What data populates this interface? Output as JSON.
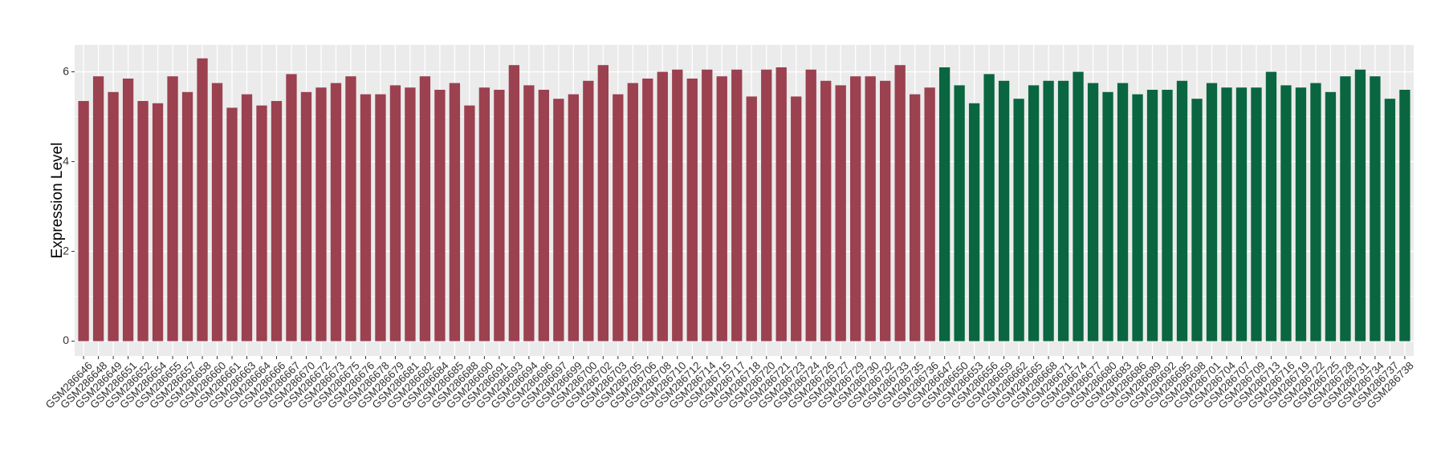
{
  "chart_data": {
    "type": "bar",
    "ylabel": "Expression Level",
    "categories": [
      "GSM286646",
      "GSM286648",
      "GSM286649",
      "GSM286651",
      "GSM286652",
      "GSM286654",
      "GSM286655",
      "GSM286657",
      "GSM286658",
      "GSM286660",
      "GSM286661",
      "GSM286663",
      "GSM286664",
      "GSM286666",
      "GSM286667",
      "GSM286670",
      "GSM286672",
      "GSM286673",
      "GSM286675",
      "GSM286676",
      "GSM286678",
      "GSM286679",
      "GSM286681",
      "GSM286682",
      "GSM286684",
      "GSM286685",
      "GSM286688",
      "GSM286690",
      "GSM286691",
      "GSM286693",
      "GSM286694",
      "GSM286696",
      "GSM286697",
      "GSM286699",
      "GSM286700",
      "GSM286702",
      "GSM286703",
      "GSM286705",
      "GSM286706",
      "GSM286708",
      "GSM286710",
      "GSM286712",
      "GSM286714",
      "GSM286715",
      "GSM286717",
      "GSM286718",
      "GSM286720",
      "GSM286721",
      "GSM286723",
      "GSM286724",
      "GSM286726",
      "GSM286727",
      "GSM286729",
      "GSM286730",
      "GSM286732",
      "GSM286733",
      "GSM286735",
      "GSM286736",
      "GSM286647",
      "GSM286650",
      "GSM286653",
      "GSM286656",
      "GSM286659",
      "GSM286662",
      "GSM286665",
      "GSM286668",
      "GSM286671",
      "GSM286674",
      "GSM286677",
      "GSM286680",
      "GSM286683",
      "GSM286686",
      "GSM286689",
      "GSM286692",
      "GSM286695",
      "GSM286698",
      "GSM286701",
      "GSM286704",
      "GSM286707",
      "GSM286709",
      "GSM286713",
      "GSM286716",
      "GSM286719",
      "GSM286722",
      "GSM286725",
      "GSM286728",
      "GSM286731",
      "GSM286734",
      "GSM286737",
      "GSM286738"
    ],
    "series": [
      {
        "color": "#9b4150",
        "values": [
          5.35,
          5.9,
          5.55,
          5.85,
          5.35,
          5.3,
          5.9,
          5.55,
          6.3,
          5.75,
          5.2,
          5.5,
          5.25,
          5.35,
          5.95,
          5.55,
          5.65,
          5.75,
          5.9,
          5.5,
          5.5,
          5.7,
          5.65,
          5.9,
          5.6,
          5.75,
          5.25,
          5.65,
          5.6,
          6.15,
          5.7,
          5.6,
          5.4,
          5.5,
          5.8,
          6.15,
          5.5,
          5.75,
          5.85,
          6.0,
          6.05,
          5.85,
          6.05,
          5.9,
          6.05,
          5.45,
          6.05,
          6.1,
          5.45,
          6.05,
          5.8,
          5.7,
          5.9,
          5.9,
          5.8,
          6.15,
          5.5,
          5.65,
          null,
          null,
          null,
          null,
          null,
          null,
          null,
          null,
          null,
          null,
          null,
          null,
          null,
          null,
          null,
          null,
          null,
          null,
          null,
          null,
          null,
          null,
          null,
          null,
          null,
          null,
          null,
          null,
          null,
          null,
          null,
          null
        ]
      },
      {
        "color": "#0a6640",
        "values": [
          null,
          null,
          null,
          null,
          null,
          null,
          null,
          null,
          null,
          null,
          null,
          null,
          null,
          null,
          null,
          null,
          null,
          null,
          null,
          null,
          null,
          null,
          null,
          null,
          null,
          null,
          null,
          null,
          null,
          null,
          null,
          null,
          null,
          null,
          null,
          null,
          null,
          null,
          null,
          null,
          null,
          null,
          null,
          null,
          null,
          null,
          null,
          null,
          null,
          null,
          null,
          null,
          null,
          null,
          null,
          null,
          null,
          null,
          6.1,
          5.7,
          5.3,
          5.95,
          5.8,
          5.4,
          5.7,
          5.8,
          5.8,
          6.0,
          5.75,
          5.55,
          5.75,
          5.5,
          5.6,
          5.6,
          5.8,
          5.4,
          5.75,
          5.65,
          5.65,
          5.65,
          6.0,
          5.7,
          5.65,
          5.75,
          5.55,
          5.9,
          6.05,
          5.9,
          5.4,
          5.6
        ]
      }
    ],
    "ylim": [
      -0.33,
      6.6
    ],
    "yticks": [
      0,
      2,
      4,
      6
    ],
    "grid": true
  }
}
